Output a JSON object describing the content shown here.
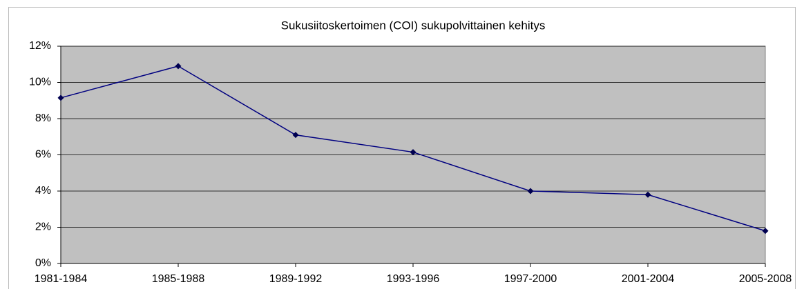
{
  "chart_data": {
    "type": "line",
    "title": "Sukusiitoskertoimen (COI) sukupolvittainen kehitys",
    "categories": [
      "1981-1984",
      "1985-1988",
      "1989-1992",
      "1993-1996",
      "1997-2000",
      "2001-2004",
      "2005-2008"
    ],
    "values": [
      9.15,
      10.9,
      7.1,
      6.15,
      4.0,
      3.8,
      1.8
    ],
    "color": "#000080",
    "ylim": [
      0,
      12
    ],
    "yticks": [
      {
        "value": 0,
        "label": "0%"
      },
      {
        "value": 2,
        "label": "2%"
      },
      {
        "value": 4,
        "label": "4%"
      },
      {
        "value": 6,
        "label": "6%"
      },
      {
        "value": 8,
        "label": "8%"
      },
      {
        "value": 10,
        "label": "10%"
      },
      {
        "value": 12,
        "label": "12%"
      }
    ],
    "grid": true
  }
}
